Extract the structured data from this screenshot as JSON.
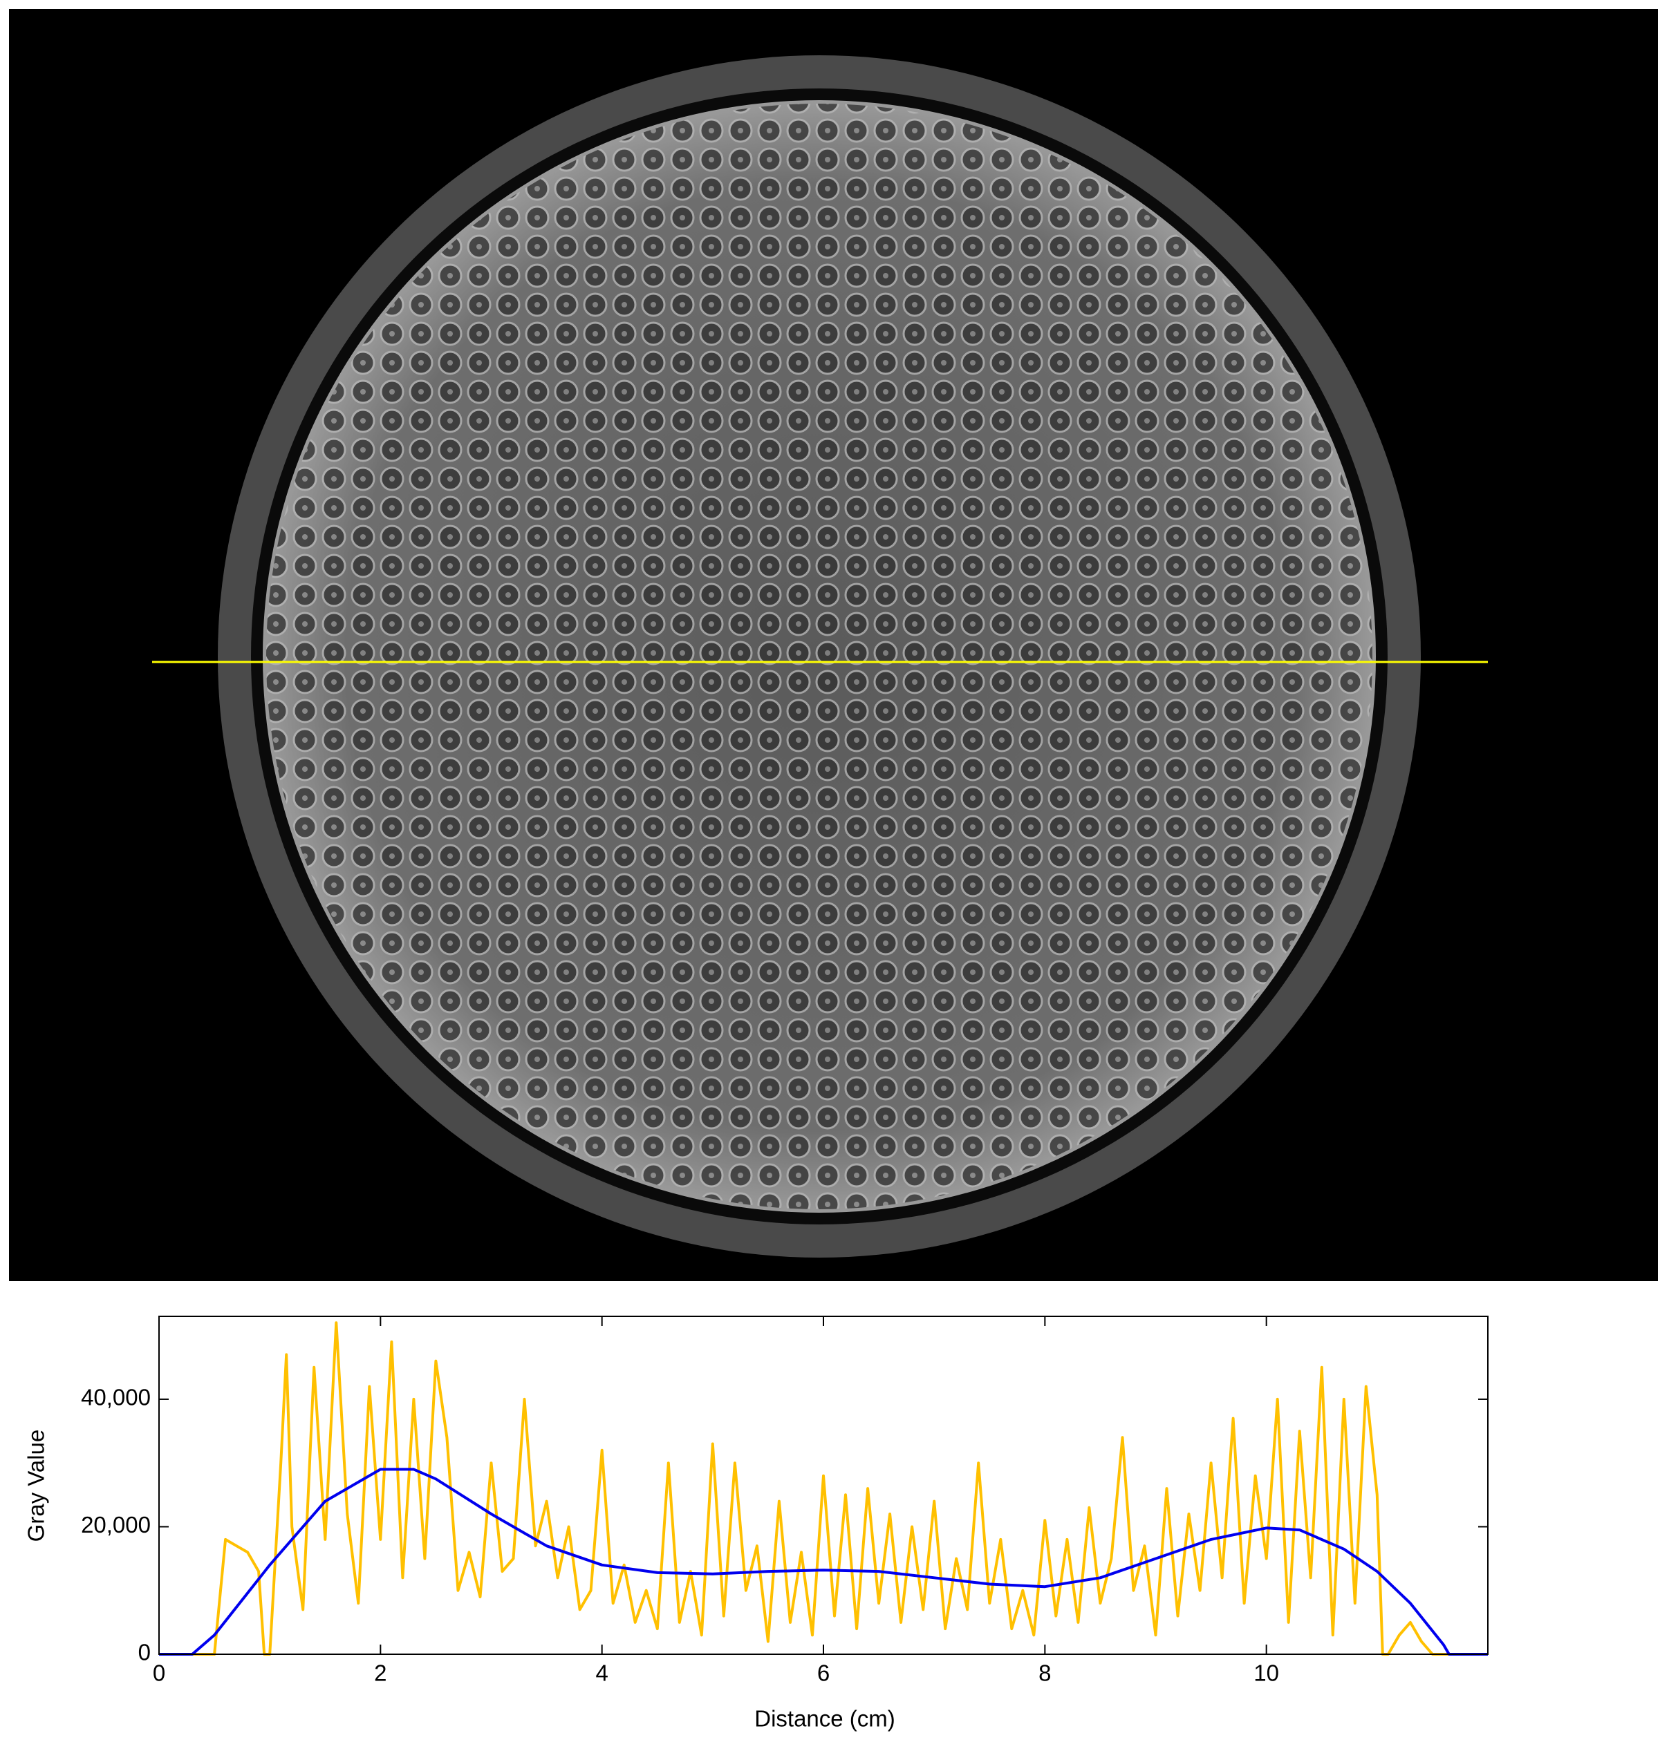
{
  "chart_data": {
    "type": "line",
    "xlabel": "Distance (cm)",
    "ylabel": "Gray Value",
    "xlim": [
      0,
      12
    ],
    "ylim": [
      0,
      53000
    ],
    "xticks": [
      0,
      2,
      4,
      6,
      8,
      10
    ],
    "yticks": [
      0,
      {
        "value": 20000,
        "label": "20,000"
      },
      {
        "value": 40000,
        "label": "40,000"
      }
    ],
    "series": [
      {
        "color": "#ffc000",
        "x": [
          0,
          0.5,
          0.6,
          0.7,
          0.8,
          0.9,
          0.95,
          1.0,
          1.1,
          1.15,
          1.2,
          1.3,
          1.4,
          1.5,
          1.6,
          1.7,
          1.8,
          1.9,
          2.0,
          2.1,
          2.2,
          2.3,
          2.4,
          2.5,
          2.6,
          2.7,
          2.8,
          2.9,
          3.0,
          3.1,
          3.2,
          3.3,
          3.4,
          3.5,
          3.6,
          3.7,
          3.8,
          3.9,
          4.0,
          4.1,
          4.2,
          4.3,
          4.4,
          4.5,
          4.6,
          4.7,
          4.8,
          4.9,
          5.0,
          5.1,
          5.2,
          5.3,
          5.4,
          5.5,
          5.6,
          5.7,
          5.8,
          5.9,
          6.0,
          6.1,
          6.2,
          6.3,
          6.4,
          6.5,
          6.6,
          6.7,
          6.8,
          6.9,
          7.0,
          7.1,
          7.2,
          7.3,
          7.4,
          7.5,
          7.6,
          7.7,
          7.8,
          7.9,
          8.0,
          8.1,
          8.2,
          8.3,
          8.4,
          8.5,
          8.6,
          8.7,
          8.8,
          8.9,
          9.0,
          9.1,
          9.2,
          9.3,
          9.4,
          9.5,
          9.6,
          9.7,
          9.8,
          9.9,
          10.0,
          10.1,
          10.2,
          10.3,
          10.4,
          10.5,
          10.6,
          10.7,
          10.8,
          10.9,
          11.0,
          11.05,
          11.1,
          11.2,
          11.3,
          11.4,
          11.5,
          12
        ],
        "values": [
          0,
          0,
          18000,
          17000,
          16000,
          13000,
          0,
          0,
          30000,
          47000,
          20000,
          7000,
          45000,
          18000,
          52000,
          22000,
          8000,
          42000,
          18000,
          49000,
          12000,
          40000,
          15000,
          46000,
          34000,
          10000,
          16000,
          9000,
          30000,
          13000,
          15000,
          40000,
          17000,
          24000,
          12000,
          20000,
          7000,
          10000,
          32000,
          8000,
          14000,
          5000,
          10000,
          4000,
          30000,
          5000,
          13000,
          3000,
          33000,
          6000,
          30000,
          10000,
          17000,
          2000,
          24000,
          5000,
          16000,
          3000,
          28000,
          6000,
          25000,
          4000,
          26000,
          8000,
          22000,
          5000,
          20000,
          7000,
          24000,
          4000,
          15000,
          7000,
          30000,
          8000,
          18000,
          4000,
          10000,
          3000,
          21000,
          6000,
          18000,
          5000,
          23000,
          8000,
          15000,
          34000,
          10000,
          17000,
          3000,
          26000,
          6000,
          22000,
          10000,
          30000,
          12000,
          37000,
          8000,
          28000,
          15000,
          40000,
          5000,
          35000,
          12000,
          45000,
          3000,
          40000,
          8000,
          42000,
          25000,
          0,
          0,
          3000,
          5000,
          2000,
          0,
          0
        ]
      },
      {
        "color": "#0000ee",
        "x": [
          0,
          0.3,
          0.5,
          1,
          1.5,
          2,
          2.3,
          2.5,
          3,
          3.5,
          4,
          4.5,
          5,
          5.5,
          6,
          6.5,
          7,
          7.5,
          8,
          8.5,
          9,
          9.5,
          10,
          10.3,
          10.7,
          11,
          11.3,
          11.6,
          11.65,
          12
        ],
        "values": [
          0,
          0,
          3000,
          14000,
          24000,
          29000,
          29000,
          27500,
          22000,
          17000,
          14000,
          12800,
          12600,
          13000,
          13200,
          13000,
          12000,
          11000,
          10600,
          12000,
          15000,
          18000,
          19800,
          19500,
          16500,
          13000,
          8000,
          1500,
          0,
          0
        ]
      }
    ]
  }
}
